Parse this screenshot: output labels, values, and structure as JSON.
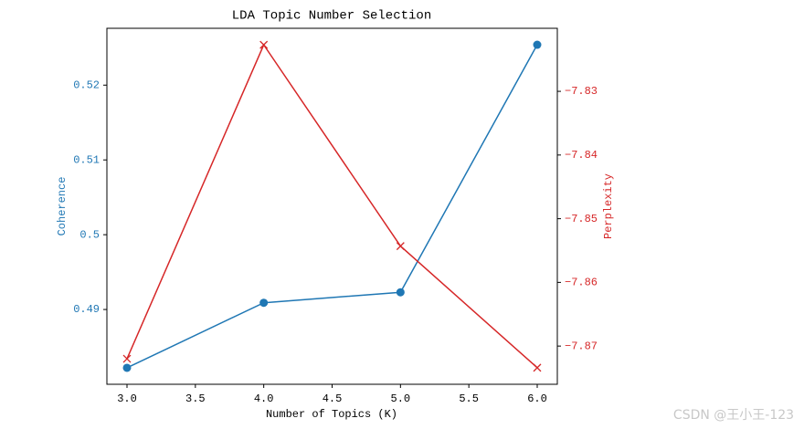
{
  "chart_data": {
    "type": "line",
    "title": "LDA Topic Number Selection",
    "x_label": "Number of Topics (K)",
    "y_label": "Coherence",
    "y2_label": "Perplexity",
    "x": [
      3,
      4,
      5,
      6
    ],
    "xlim": [
      2.853,
      6.147
    ],
    "xticks": [
      {
        "value": 3,
        "label": "3.0"
      },
      {
        "value": 3.5,
        "label": "3.5"
      },
      {
        "value": 4,
        "label": "4.0"
      },
      {
        "value": 4.5,
        "label": "4.5"
      },
      {
        "value": 5,
        "label": "5.0"
      },
      {
        "value": 5.5,
        "label": "5.5"
      },
      {
        "value": 6,
        "label": "6.0"
      }
    ],
    "ylim": [
      0.48,
      0.5276
    ],
    "yticks": [
      0.49,
      0.5,
      0.51,
      0.52
    ],
    "y_color": "#1f77b4",
    "y2lim": [
      -7.876,
      -7.8201
    ],
    "y2ticks": [
      {
        "value": -7.87,
        "label": "−7.87"
      },
      {
        "value": -7.86,
        "label": "−7.86"
      },
      {
        "value": -7.85,
        "label": "−7.85"
      },
      {
        "value": -7.84,
        "label": "−7.84"
      },
      {
        "value": -7.83,
        "label": "−7.83"
      }
    ],
    "y2_color": "#d62728",
    "series": [
      {
        "name": "Coherence",
        "color": "#1f77b4",
        "marker": "o",
        "values": [
          0.4822,
          0.4909,
          0.4923,
          0.5254
        ]
      },
      {
        "name": "Perplexity",
        "color": "#d62728",
        "marker": "x",
        "axis": "y2",
        "values": [
          -7.872,
          -7.8227,
          -7.8543,
          -7.8734
        ]
      }
    ]
  },
  "watermark": "CSDN @王小王-123"
}
